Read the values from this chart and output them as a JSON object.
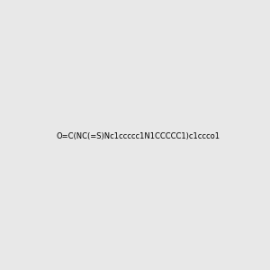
{
  "smiles": "O=C(NC(=S)Nc1ccccc1N1CCCCC1)c1ccco1",
  "image_size": 300,
  "background_color": "#e8e8e8"
}
